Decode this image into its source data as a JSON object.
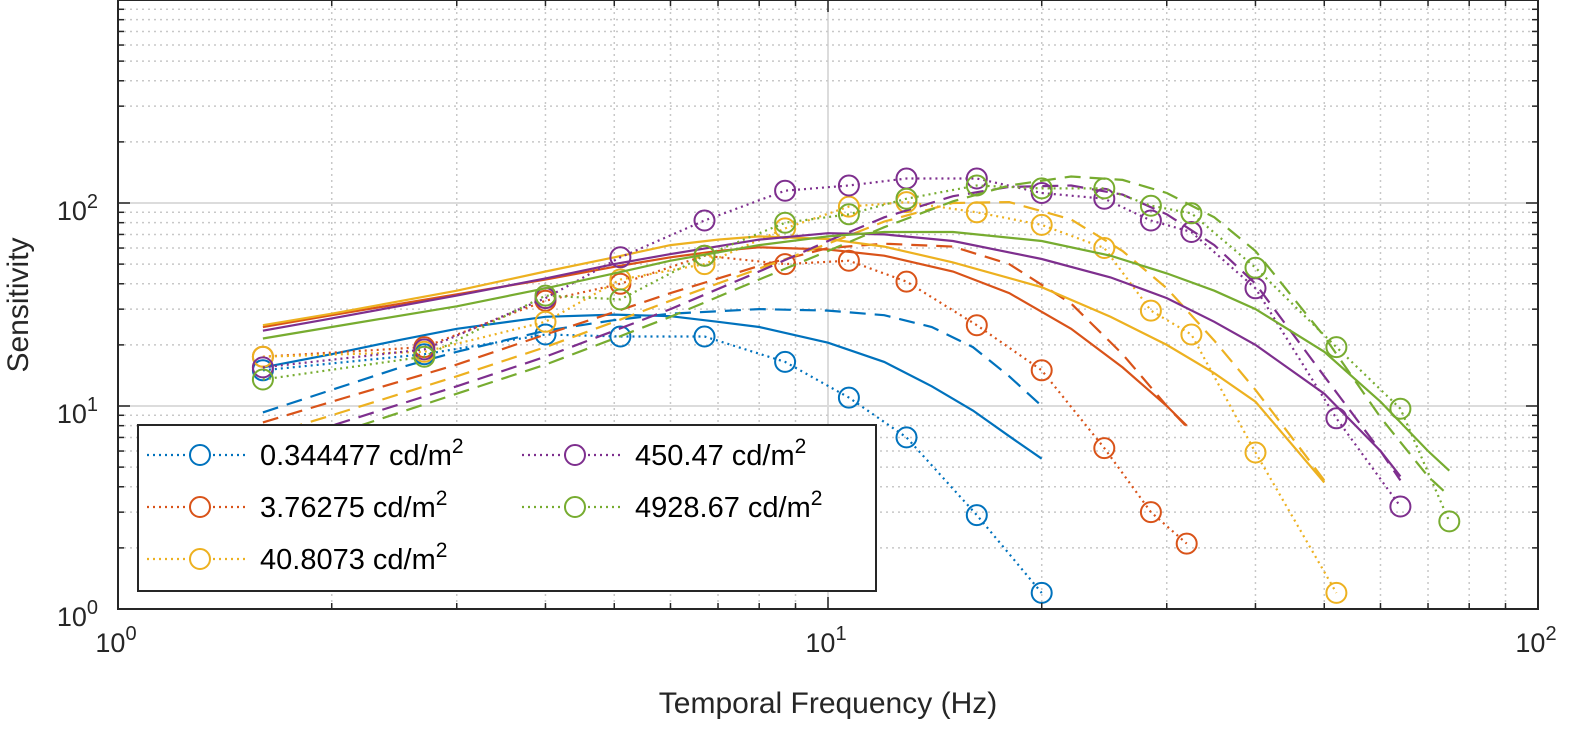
{
  "chart_data": {
    "type": "line",
    "xlabel": "Temporal Frequency (Hz)",
    "ylabel": "Sensitivity",
    "xscale": "log",
    "yscale": "log",
    "xlim": [
      1,
      100
    ],
    "ylim": [
      1,
      1000
    ],
    "grid": true,
    "minor_grid": true,
    "legend_position": "bottom-left",
    "legend_columns": 2,
    "x_ticks": [
      {
        "base": "10",
        "exp": "0"
      },
      {
        "base": "10",
        "exp": "1"
      },
      {
        "base": "10",
        "exp": "2"
      }
    ],
    "y_ticks": [
      {
        "base": "10",
        "exp": "0"
      },
      {
        "base": "10",
        "exp": "1"
      },
      {
        "base": "10",
        "exp": "2"
      }
    ],
    "series": [
      {
        "name": "0.344477 cd/m",
        "name_sup": "2",
        "color": "#0072BD",
        "measured": {
          "x": [
            1.6,
            2.7,
            4,
            5.1,
            6.7,
            8.7,
            10.7,
            12.9,
            16.2,
            20
          ],
          "y": [
            15,
            18,
            22.5,
            22,
            22,
            16.5,
            11,
            7,
            2.9,
            1.2
          ]
        },
        "fit_solid": {
          "x": [
            1.6,
            2,
            2.5,
            3,
            4,
            5,
            6,
            7,
            8,
            10,
            12,
            14,
            16,
            18,
            20
          ],
          "y": [
            15.5,
            18,
            21.2,
            24,
            27.5,
            28.2,
            27.7,
            26,
            24.5,
            20.5,
            16.5,
            12.5,
            9.5,
            7.1,
            5.5
          ]
        },
        "fit_dashed": {
          "x": [
            1.6,
            2,
            2.5,
            3,
            4,
            5,
            6,
            8,
            10,
            12,
            14,
            16,
            18,
            20
          ],
          "y": [
            9.3,
            12,
            15.5,
            18.5,
            23.5,
            26.5,
            28.5,
            30,
            29.5,
            28,
            24.5,
            19.5,
            14,
            10
          ]
        }
      },
      {
        "name": "3.76275 cd/m",
        "name_sup": "2",
        "color": "#D95319",
        "measured": {
          "x": [
            1.6,
            2.7,
            4,
            5.1,
            6.7,
            8.7,
            10.7,
            12.9,
            16.2,
            20,
            24.5,
            28.5,
            32
          ],
          "y": [
            17.5,
            19.5,
            33,
            40,
            55,
            50,
            52,
            41,
            25,
            15,
            6.2,
            3,
            2.1
          ]
        },
        "fit_solid": {
          "x": [
            1.6,
            2,
            3,
            4,
            5,
            6,
            7,
            8,
            10,
            12,
            15,
            18,
            22,
            26,
            30,
            32
          ],
          "y": [
            24.5,
            28,
            35.5,
            42,
            48.5,
            54,
            58,
            60.5,
            59,
            55,
            46,
            36,
            24,
            15.5,
            10,
            8
          ]
        },
        "fit_dashed": {
          "x": [
            1.6,
            2,
            3,
            4,
            5,
            6,
            8,
            10,
            12,
            15,
            18,
            22,
            26,
            30,
            32
          ],
          "y": [
            8.3,
            10.5,
            16,
            22.5,
            29,
            36,
            49,
            60,
            63,
            61,
            50,
            32,
            18,
            10,
            7.9
          ]
        }
      },
      {
        "name": "40.8073 cd/m",
        "name_sup": "2",
        "color": "#EDB120",
        "measured": {
          "x": [
            1.6,
            2.7,
            4,
            5.1,
            6.7,
            8.7,
            10.7,
            12.9,
            16.2,
            20,
            24.5,
            28.5,
            32.5,
            40,
            52
          ],
          "y": [
            17.5,
            18.5,
            26,
            42,
            50,
            75,
            96,
            101,
            90,
            78,
            60,
            29.5,
            22.5,
            5.9,
            1.2
          ]
        },
        "fit_solid": {
          "x": [
            1.6,
            2,
            3,
            4,
            5,
            6,
            7,
            8,
            10,
            12,
            15,
            20,
            25,
            30,
            35,
            40,
            50
          ],
          "y": [
            25,
            28.5,
            37,
            46,
            54,
            62,
            66,
            68.5,
            66.5,
            61,
            51,
            38.5,
            27.5,
            20,
            14.5,
            10.5,
            4.2
          ]
        },
        "fit_dashed": {
          "x": [
            1.6,
            2,
            3,
            4,
            5,
            6,
            8,
            10,
            12,
            15,
            18,
            22,
            26,
            30,
            35,
            40,
            45,
            50
          ],
          "y": [
            7.1,
            9,
            14,
            19.5,
            26,
            33,
            47.5,
            63,
            81,
            100,
            101,
            83,
            58,
            38,
            21,
            12,
            7,
            4.3
          ]
        }
      },
      {
        "name": "450.47 cd/m",
        "name_sup": "2",
        "color": "#7E2F8E",
        "measured": {
          "x": [
            1.6,
            2.7,
            4,
            5.1,
            6.7,
            8.7,
            10.7,
            12.9,
            16.2,
            20,
            24.5,
            28.5,
            32.5,
            40,
            52,
            64
          ],
          "y": [
            15.5,
            19,
            34,
            54,
            82,
            115,
            122,
            132,
            132,
            112,
            105,
            82,
            72,
            38,
            8.7,
            3.2
          ]
        },
        "fit_solid": {
          "x": [
            1.6,
            2,
            3,
            4,
            5,
            6,
            8,
            10,
            12,
            15,
            20,
            25,
            30,
            35,
            40,
            50,
            60,
            64
          ],
          "y": [
            23.5,
            27,
            35,
            42.5,
            50,
            56,
            66,
            71,
            70,
            65,
            53,
            43,
            34,
            26,
            20,
            11.5,
            6,
            4.5
          ]
        },
        "fit_dashed": {
          "x": [
            1.6,
            2,
            3,
            4,
            5,
            6,
            8,
            10,
            12,
            15,
            18,
            22,
            26,
            30,
            35,
            40,
            50,
            60,
            64
          ],
          "y": [
            6.3,
            8,
            12.5,
            17.5,
            23.5,
            30,
            46,
            65,
            85,
            108,
            120,
            122,
            110,
            88,
            62,
            40,
            14,
            6,
            4.3
          ]
        }
      },
      {
        "name": "4928.67 cd/m",
        "name_sup": "2",
        "color": "#77AC30",
        "measured": {
          "x": [
            1.6,
            2.7,
            4,
            5.1,
            6.7,
            8.7,
            10.7,
            12.9,
            16.2,
            20,
            24.5,
            28.5,
            32.5,
            40,
            52,
            64,
            75
          ],
          "y": [
            13.5,
            17.5,
            35,
            33.5,
            55,
            80,
            88,
            105,
            122,
            118,
            118,
            97,
            89,
            48,
            19.5,
            9.7,
            2.7
          ]
        },
        "fit_solid": {
          "x": [
            1.6,
            2,
            3,
            4,
            5,
            6,
            8,
            10,
            12,
            15,
            20,
            25,
            30,
            35,
            40,
            50,
            60,
            70,
            75
          ],
          "y": [
            21.5,
            24.5,
            31,
            38,
            45,
            52,
            62,
            68.5,
            72,
            72,
            65,
            55,
            45,
            37,
            30,
            18.5,
            10.5,
            6,
            4.8
          ]
        },
        "fit_dashed": {
          "x": [
            1.6,
            2,
            3,
            4,
            5,
            6,
            8,
            10,
            12,
            15,
            18,
            22,
            26,
            30,
            35,
            40,
            50,
            60,
            70,
            75
          ],
          "y": [
            5.8,
            7.2,
            11.5,
            16,
            21.5,
            27.5,
            42,
            58,
            76,
            102,
            122,
            135,
            130,
            112,
            85,
            58,
            22,
            8.8,
            4.5,
            3.6
          ]
        }
      }
    ]
  }
}
